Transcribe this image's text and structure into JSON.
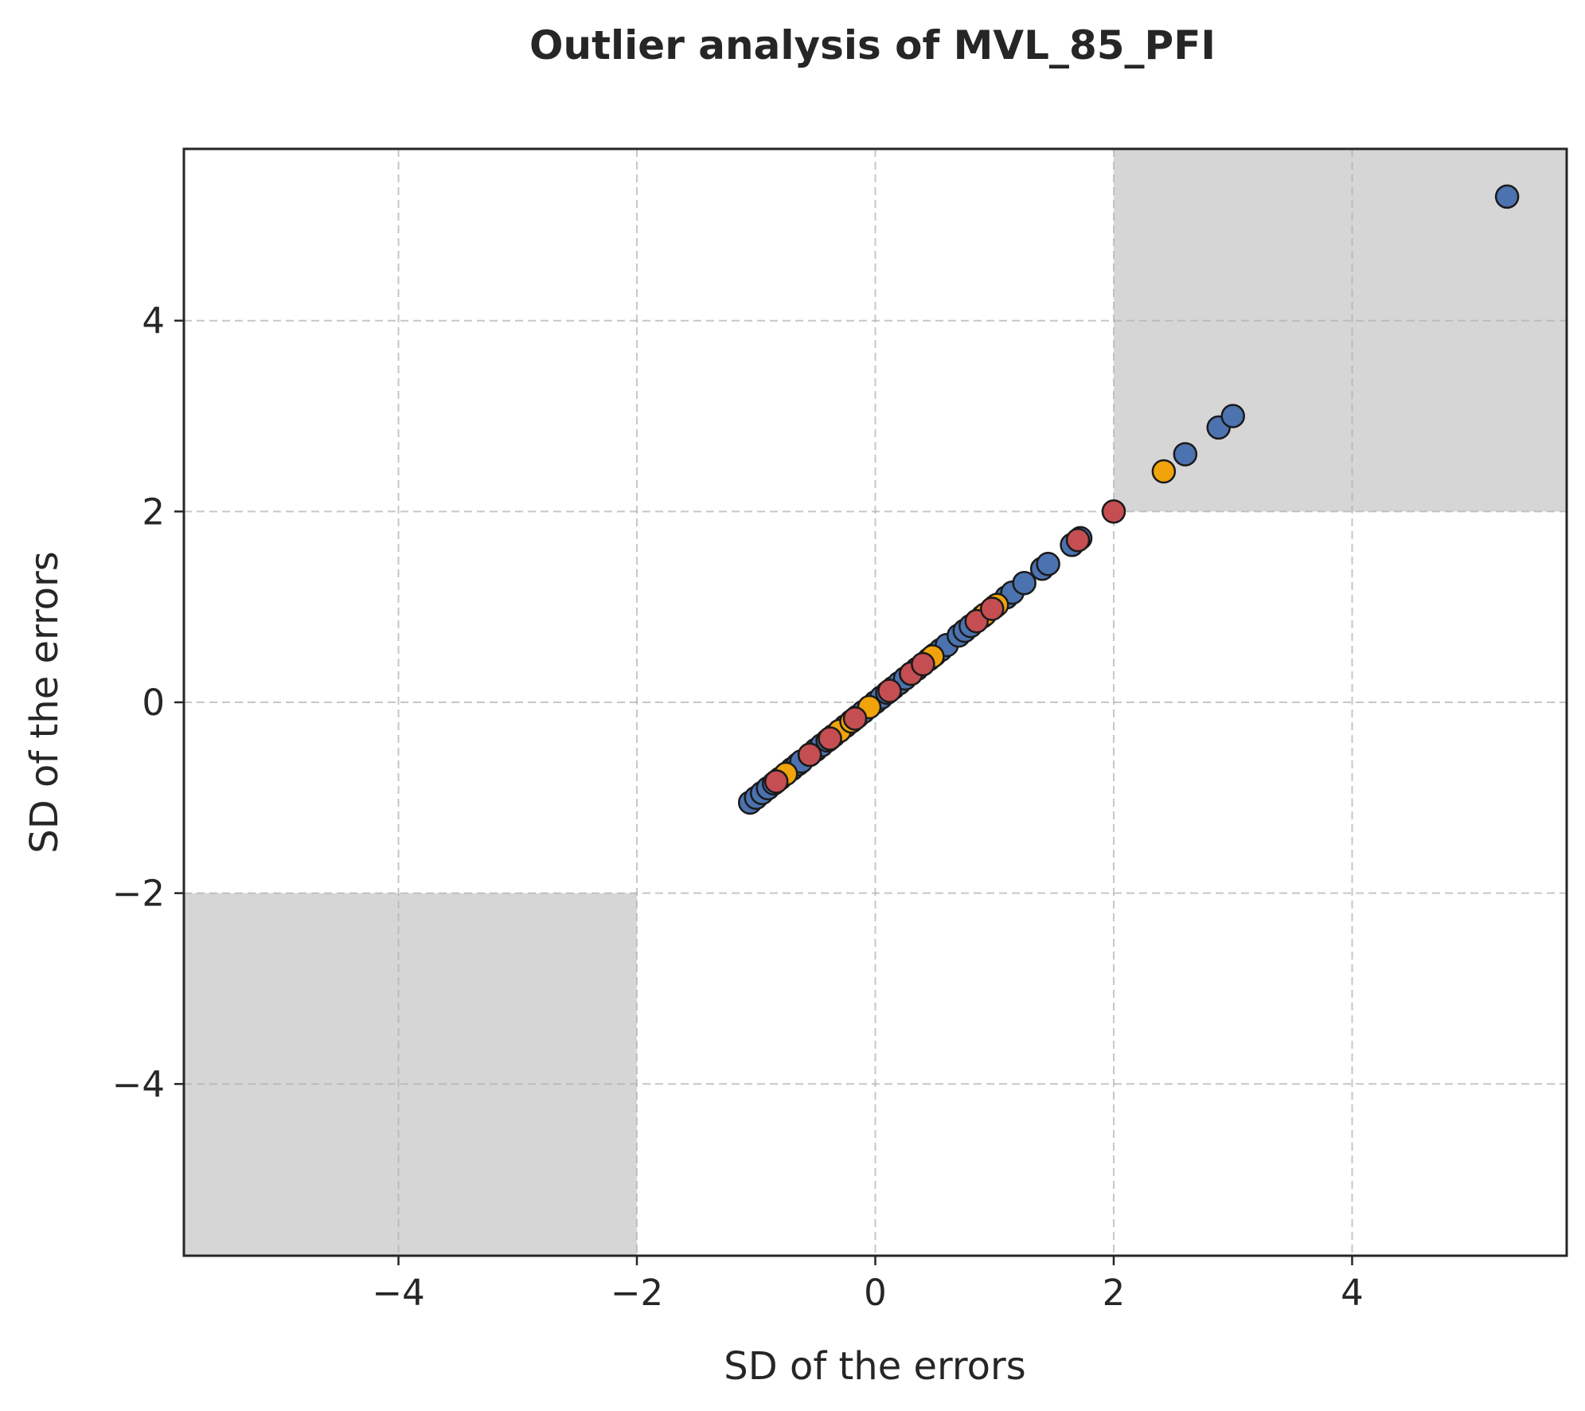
{
  "chart_data": {
    "type": "scatter",
    "title": "Outlier analysis of MVL_85_PFI",
    "xlabel": "SD of the errors",
    "ylabel": "SD of the errors",
    "xlim": [
      -5.8,
      5.8
    ],
    "ylim": [
      -5.8,
      5.8
    ],
    "xticks": [
      -4,
      -2,
      0,
      2,
      4
    ],
    "yticks": [
      -4,
      -2,
      0,
      2,
      4
    ],
    "xtick_labels": [
      "−4",
      "−2",
      "0",
      "2",
      "4"
    ],
    "ytick_labels": [
      "−4",
      "−2",
      "0",
      "2",
      "4"
    ],
    "grid": true,
    "shaded_regions": [
      {
        "x": [
          2,
          5.8
        ],
        "y": [
          2,
          5.8
        ],
        "color": "#d6d6d6"
      },
      {
        "x": [
          -5.8,
          -2
        ],
        "y": [
          -5.8,
          -2
        ],
        "color": "#d6d6d6"
      }
    ],
    "series": [
      {
        "color": "#4c72b0",
        "x": [
          -1.05,
          -1.0,
          -0.95,
          -0.9,
          -0.85,
          -0.8,
          -0.75,
          -0.7,
          -0.65,
          -0.62,
          -0.55,
          -0.5,
          -0.45,
          -0.4,
          -0.35,
          -0.3,
          -0.25,
          -0.2,
          -0.15,
          -0.1,
          0.0,
          0.05,
          0.1,
          0.15,
          0.2,
          0.25,
          0.3,
          0.35,
          0.4,
          0.45,
          0.5,
          0.55,
          0.6,
          0.7,
          0.75,
          0.8,
          0.9,
          1.0,
          1.1,
          1.15,
          1.25,
          1.4,
          1.45,
          1.65,
          1.72,
          2.6,
          2.88,
          3.0,
          5.3
        ],
        "y": [
          -1.05,
          -1.0,
          -0.95,
          -0.9,
          -0.85,
          -0.8,
          -0.75,
          -0.7,
          -0.65,
          -0.62,
          -0.55,
          -0.5,
          -0.45,
          -0.4,
          -0.35,
          -0.3,
          -0.25,
          -0.2,
          -0.15,
          -0.1,
          0.0,
          0.05,
          0.1,
          0.15,
          0.2,
          0.25,
          0.3,
          0.35,
          0.4,
          0.45,
          0.5,
          0.55,
          0.6,
          0.7,
          0.75,
          0.8,
          0.9,
          1.0,
          1.1,
          1.15,
          1.25,
          1.4,
          1.45,
          1.65,
          1.72,
          2.6,
          2.88,
          3.0,
          5.3
        ]
      },
      {
        "color": "#f0a30a",
        "x": [
          -0.75,
          -0.55,
          -0.38,
          -0.3,
          -0.2,
          -0.05,
          0.3,
          0.48,
          0.92,
          1.02,
          2.42
        ],
        "y": [
          -0.75,
          -0.55,
          -0.38,
          -0.3,
          -0.2,
          -0.05,
          0.3,
          0.48,
          0.92,
          1.02,
          2.42
        ]
      },
      {
        "color": "#c44e52",
        "x": [
          -0.83,
          -0.55,
          -0.38,
          -0.17,
          0.12,
          0.3,
          0.4,
          0.85,
          0.98,
          1.7,
          2.0
        ],
        "y": [
          -0.83,
          -0.55,
          -0.38,
          -0.17,
          0.12,
          0.3,
          0.4,
          0.85,
          0.98,
          1.7,
          2.0
        ]
      }
    ]
  }
}
